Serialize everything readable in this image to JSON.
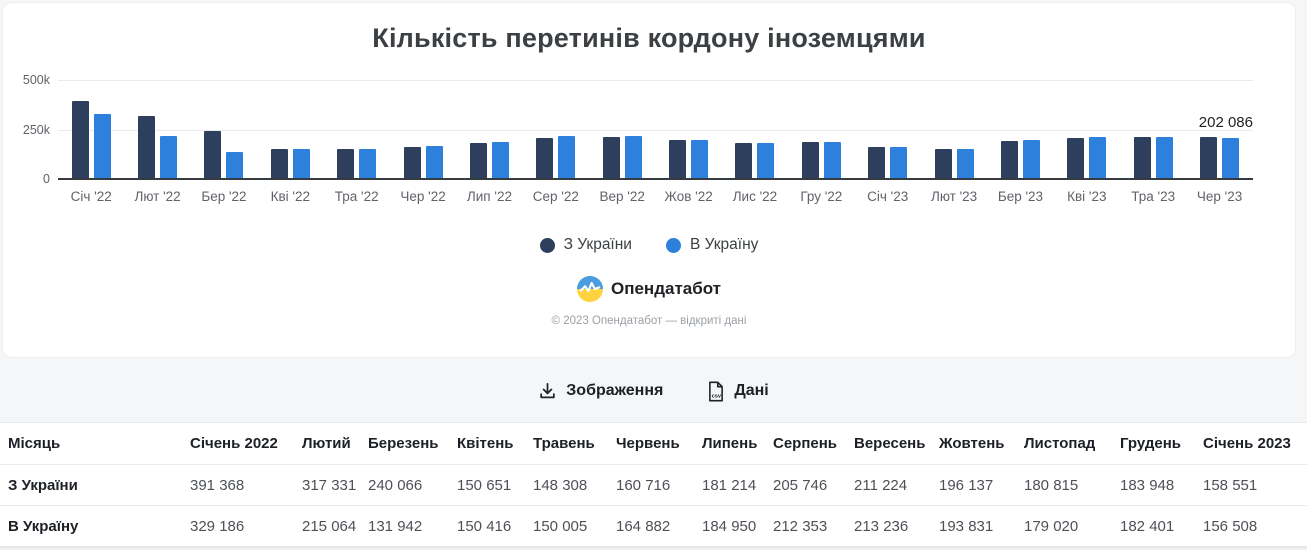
{
  "title": "Кількість перетинів кордону іноземцями",
  "chart_data": {
    "type": "bar",
    "x": [
      "Січ '22",
      "Лют '22",
      "Бер '22",
      "Кві '22",
      "Тра '22",
      "Чер '22",
      "Лип '22",
      "Сер '22",
      "Вер '22",
      "Жов '22",
      "Лис '22",
      "Гру '22",
      "Січ '23",
      "Лют '23",
      "Бер '23",
      "Кві '23",
      "Тра '23",
      "Чер '23"
    ],
    "series": [
      {
        "name": "З України",
        "color": "#2e3f5d",
        "values": [
          391368,
          317331,
          240066,
          150651,
          148308,
          160716,
          181214,
          205746,
          211224,
          196137,
          180815,
          183948,
          158551,
          148000,
          188000,
          204000,
          208000,
          209000
        ]
      },
      {
        "name": "В Україну",
        "color": "#2e80dd",
        "values": [
          329186,
          215064,
          131942,
          150416,
          150005,
          164882,
          184950,
          212353,
          213236,
          193831,
          179020,
          182401,
          156508,
          150000,
          193000,
          208000,
          208000,
          202086
        ]
      }
    ],
    "ylim": [
      0,
      500000
    ],
    "yticks": [
      "500k",
      "250k",
      "0"
    ],
    "grid": true,
    "legend_position": "bottom",
    "annotation": {
      "text": "202 086",
      "month": "Чер '23",
      "series": "В Україну",
      "value": 202086
    }
  },
  "branding": {
    "logo_text": "Опендатабот",
    "copyright": "© 2023 Опендатабот — відкриті дані"
  },
  "actions": {
    "image_label": "Зображення",
    "data_label": "Дані",
    "csv_badge": "csv"
  },
  "table": {
    "month_header": "Місяць",
    "columns": [
      "Січень 2022",
      "Лютий",
      "Березень",
      "Квітень",
      "Травень",
      "Червень",
      "Липень",
      "Серпень",
      "Вересень",
      "Жовтень",
      "Листопад",
      "Грудень",
      "Січень 2023"
    ],
    "rows": [
      {
        "label": "З України",
        "values": [
          "391 368",
          "317 331",
          "240 066",
          "150 651",
          "148 308",
          "160 716",
          "181 214",
          "205 746",
          "211 224",
          "196 137",
          "180 815",
          "183 948",
          "158 551"
        ]
      },
      {
        "label": "В Україну",
        "values": [
          "329 186",
          "215 064",
          "131 942",
          "150 416",
          "150 005",
          "164 882",
          "184 950",
          "212 353",
          "213 236",
          "193 831",
          "179 020",
          "182 401",
          "156 508"
        ]
      }
    ]
  }
}
